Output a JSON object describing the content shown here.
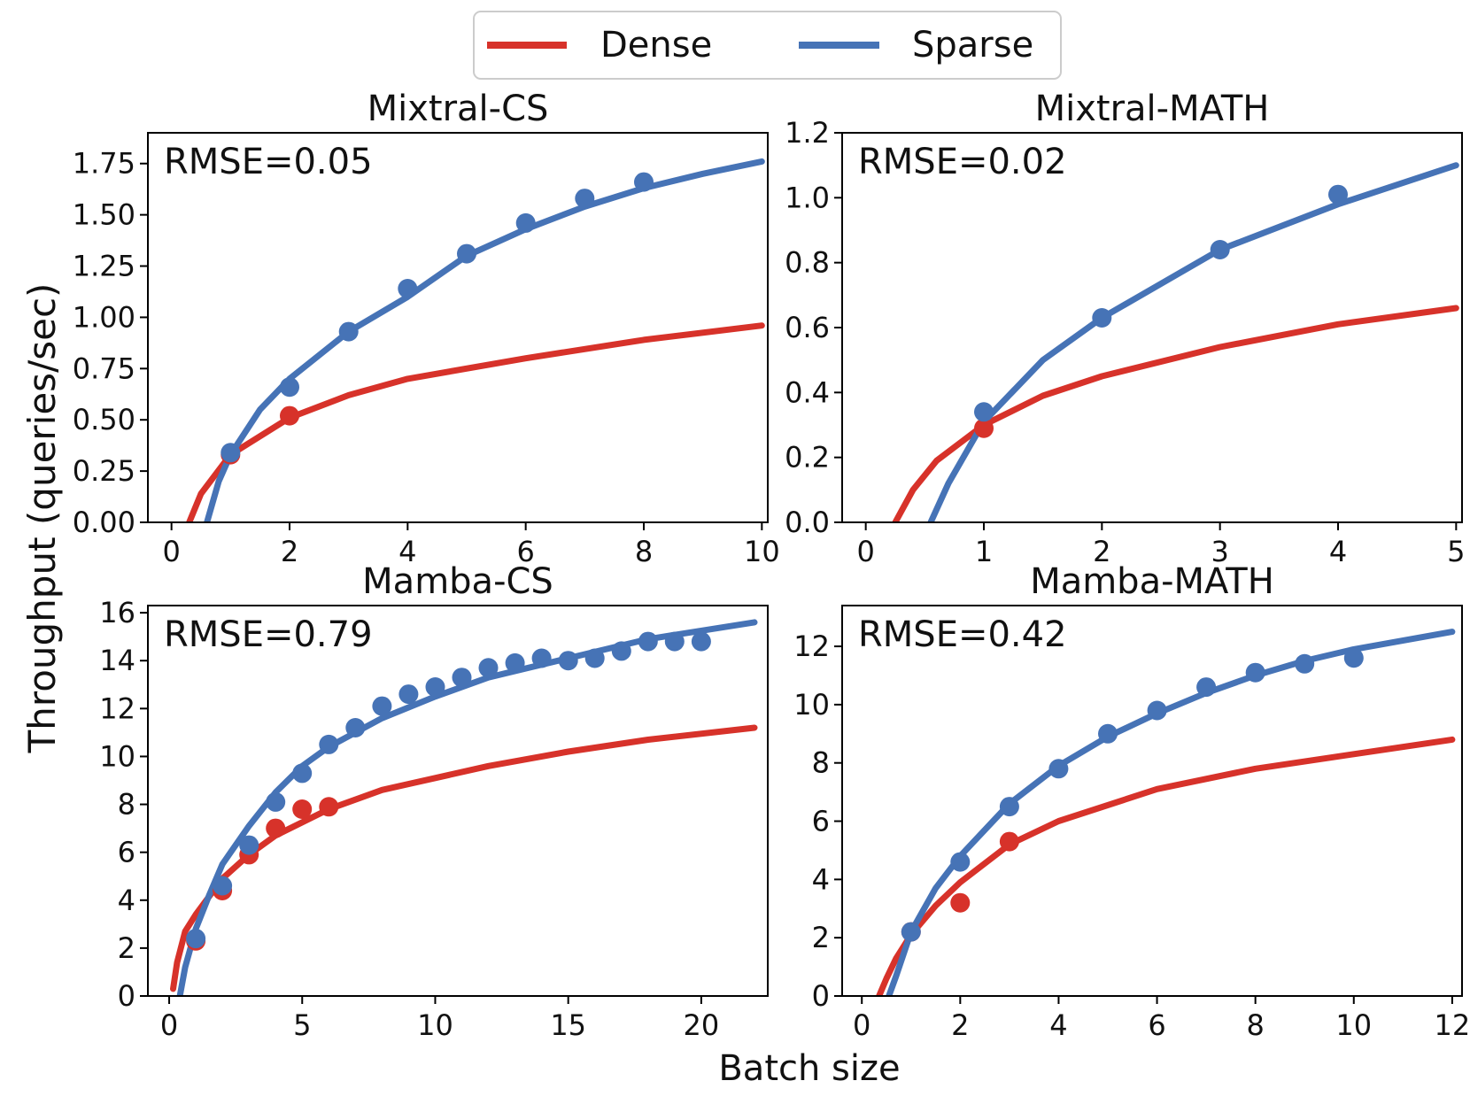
{
  "legend": {
    "placement": "top-center",
    "items": [
      {
        "name": "Dense",
        "color": "#d7322a"
      },
      {
        "name": "Sparse",
        "color": "#4673b6"
      }
    ]
  },
  "shared_labels": {
    "xlabel": "Batch size",
    "ylabel": "Throughput (queries/sec)"
  },
  "chart_data": [
    {
      "type": "scatter",
      "title": "Mixtral-CS",
      "annotation": "RMSE=0.05",
      "xlim": [
        -0.4,
        10.1
      ],
      "ylim": [
        0,
        1.9
      ],
      "xticks": [
        0,
        2,
        4,
        6,
        8,
        10
      ],
      "yticks": [
        0,
        0.25,
        0.5,
        0.75,
        1.0,
        1.25,
        1.5,
        1.75
      ],
      "ytick_labels": [
        "0.00",
        "0.25",
        "0.50",
        "0.75",
        "1.00",
        "1.25",
        "1.50",
        "1.75"
      ],
      "series": [
        {
          "name": "Dense",
          "color": "#d7322a",
          "points": [
            [
              1,
              0.33
            ],
            [
              2,
              0.52
            ]
          ],
          "fit_curve": [
            [
              0.3,
              0.0
            ],
            [
              0.5,
              0.14
            ],
            [
              1,
              0.33
            ],
            [
              2,
              0.51
            ],
            [
              3,
              0.62
            ],
            [
              4,
              0.7
            ],
            [
              6,
              0.8
            ],
            [
              8,
              0.89
            ],
            [
              10,
              0.96
            ]
          ]
        },
        {
          "name": "Sparse",
          "color": "#4673b6",
          "points": [
            [
              1,
              0.34
            ],
            [
              2,
              0.66
            ],
            [
              3,
              0.93
            ],
            [
              4,
              1.14
            ],
            [
              5,
              1.31
            ],
            [
              6,
              1.46
            ],
            [
              7,
              1.58
            ],
            [
              8,
              1.66
            ]
          ],
          "fit_curve": [
            [
              0.6,
              0.0
            ],
            [
              0.8,
              0.2
            ],
            [
              1,
              0.33
            ],
            [
              1.5,
              0.55
            ],
            [
              2,
              0.7
            ],
            [
              3,
              0.93
            ],
            [
              4,
              1.1
            ],
            [
              5,
              1.3
            ],
            [
              6,
              1.43
            ],
            [
              7,
              1.54
            ],
            [
              8,
              1.63
            ],
            [
              9,
              1.7
            ],
            [
              10,
              1.76
            ]
          ]
        }
      ]
    },
    {
      "type": "scatter",
      "title": "Mixtral-MATH",
      "annotation": "RMSE=0.02",
      "xlim": [
        -0.2,
        5.05
      ],
      "ylim": [
        0,
        1.2
      ],
      "xticks": [
        0,
        1,
        2,
        3,
        4,
        5
      ],
      "yticks": [
        0,
        0.2,
        0.4,
        0.6,
        0.8,
        1.0,
        1.2
      ],
      "ytick_labels": [
        "0.0",
        "0.2",
        "0.4",
        "0.6",
        "0.8",
        "1.0",
        "1.2"
      ],
      "series": [
        {
          "name": "Dense",
          "color": "#d7322a",
          "points": [
            [
              1,
              0.29
            ]
          ],
          "fit_curve": [
            [
              0.25,
              0.0
            ],
            [
              0.4,
              0.1
            ],
            [
              0.6,
              0.19
            ],
            [
              1,
              0.3
            ],
            [
              1.5,
              0.39
            ],
            [
              2,
              0.45
            ],
            [
              3,
              0.54
            ],
            [
              4,
              0.61
            ],
            [
              5,
              0.66
            ]
          ]
        },
        {
          "name": "Sparse",
          "color": "#4673b6",
          "points": [
            [
              1,
              0.34
            ],
            [
              2,
              0.63
            ],
            [
              3,
              0.84
            ],
            [
              4,
              1.01
            ]
          ],
          "fit_curve": [
            [
              0.55,
              0.0
            ],
            [
              0.7,
              0.12
            ],
            [
              1,
              0.31
            ],
            [
              1.5,
              0.5
            ],
            [
              2,
              0.63
            ],
            [
              3,
              0.84
            ],
            [
              4,
              0.98
            ],
            [
              5,
              1.1
            ]
          ]
        }
      ]
    },
    {
      "type": "scatter",
      "title": "Mamba-CS",
      "annotation": "RMSE=0.79",
      "xlim": [
        -0.8,
        22.5
      ],
      "ylim": [
        0,
        16.3
      ],
      "xticks": [
        0,
        5,
        10,
        15,
        20
      ],
      "yticks": [
        0,
        2,
        4,
        6,
        8,
        10,
        12,
        14,
        16
      ],
      "ytick_labels": [
        "0",
        "2",
        "4",
        "6",
        "8",
        "10",
        "12",
        "14",
        "16"
      ],
      "series": [
        {
          "name": "Dense",
          "color": "#d7322a",
          "points": [
            [
              1,
              2.3
            ],
            [
              2,
              4.4
            ],
            [
              3,
              5.9
            ],
            [
              4,
              7.0
            ],
            [
              5,
              7.8
            ],
            [
              6,
              7.9
            ]
          ],
          "fit_curve": [
            [
              0.15,
              0.3
            ],
            [
              0.3,
              1.4
            ],
            [
              0.6,
              2.7
            ],
            [
              1,
              3.4
            ],
            [
              2,
              4.9
            ],
            [
              3,
              5.9
            ],
            [
              4,
              6.7
            ],
            [
              6,
              7.8
            ],
            [
              8,
              8.6
            ],
            [
              10,
              9.1
            ],
            [
              12,
              9.6
            ],
            [
              15,
              10.2
            ],
            [
              18,
              10.7
            ],
            [
              22,
              11.2
            ]
          ]
        },
        {
          "name": "Sparse",
          "color": "#4673b6",
          "points": [
            [
              1,
              2.4
            ],
            [
              2,
              4.6
            ],
            [
              3,
              6.3
            ],
            [
              4,
              8.1
            ],
            [
              5,
              9.3
            ],
            [
              6,
              10.5
            ],
            [
              7,
              11.2
            ],
            [
              8,
              12.1
            ],
            [
              9,
              12.6
            ],
            [
              10,
              12.9
            ],
            [
              11,
              13.3
            ],
            [
              12,
              13.7
            ],
            [
              13,
              13.9
            ],
            [
              14,
              14.1
            ],
            [
              15,
              14.0
            ],
            [
              16,
              14.1
            ],
            [
              17,
              14.4
            ],
            [
              18,
              14.8
            ],
            [
              19,
              14.8
            ],
            [
              20,
              14.8
            ]
          ],
          "fit_curve": [
            [
              0.4,
              0.0
            ],
            [
              0.6,
              1.2
            ],
            [
              1,
              2.8
            ],
            [
              1.5,
              4.2
            ],
            [
              2,
              5.5
            ],
            [
              3,
              7.1
            ],
            [
              4,
              8.5
            ],
            [
              5,
              9.6
            ],
            [
              6,
              10.4
            ],
            [
              8,
              11.6
            ],
            [
              10,
              12.5
            ],
            [
              12,
              13.3
            ],
            [
              15,
              14.1
            ],
            [
              18,
              14.9
            ],
            [
              22,
              15.6
            ]
          ]
        }
      ]
    },
    {
      "type": "scatter",
      "title": "Mamba-MATH",
      "annotation": "RMSE=0.42",
      "xlim": [
        -0.4,
        12.2
      ],
      "ylim": [
        0,
        13.4
      ],
      "xticks": [
        0,
        2,
        4,
        6,
        8,
        10,
        12
      ],
      "yticks": [
        0,
        2,
        4,
        6,
        8,
        10,
        12
      ],
      "ytick_labels": [
        "0",
        "2",
        "4",
        "6",
        "8",
        "10",
        "12"
      ],
      "series": [
        {
          "name": "Dense",
          "color": "#d7322a",
          "points": [
            [
              1,
              2.2
            ],
            [
              2,
              3.2
            ],
            [
              3,
              5.3
            ]
          ],
          "fit_curve": [
            [
              0.35,
              0.0
            ],
            [
              0.5,
              0.6
            ],
            [
              0.7,
              1.3
            ],
            [
              1,
              2.1
            ],
            [
              1.5,
              3.1
            ],
            [
              2,
              3.9
            ],
            [
              3,
              5.2
            ],
            [
              4,
              6.0
            ],
            [
              6,
              7.1
            ],
            [
              8,
              7.8
            ],
            [
              10,
              8.3
            ],
            [
              12,
              8.8
            ]
          ]
        },
        {
          "name": "Sparse",
          "color": "#4673b6",
          "points": [
            [
              1,
              2.2
            ],
            [
              2,
              4.6
            ],
            [
              3,
              6.5
            ],
            [
              4,
              7.8
            ],
            [
              5,
              9.0
            ],
            [
              6,
              9.8
            ],
            [
              7,
              10.6
            ],
            [
              8,
              11.1
            ],
            [
              9,
              11.4
            ],
            [
              10,
              11.6
            ]
          ],
          "fit_curve": [
            [
              0.55,
              0.0
            ],
            [
              0.7,
              0.7
            ],
            [
              1,
              2.2
            ],
            [
              1.5,
              3.7
            ],
            [
              2,
              4.8
            ],
            [
              3,
              6.6
            ],
            [
              4,
              7.9
            ],
            [
              5,
              8.9
            ],
            [
              6,
              9.7
            ],
            [
              7,
              10.4
            ],
            [
              8,
              11.0
            ],
            [
              9,
              11.5
            ],
            [
              10,
              11.9
            ],
            [
              12,
              12.5
            ]
          ]
        }
      ]
    }
  ]
}
